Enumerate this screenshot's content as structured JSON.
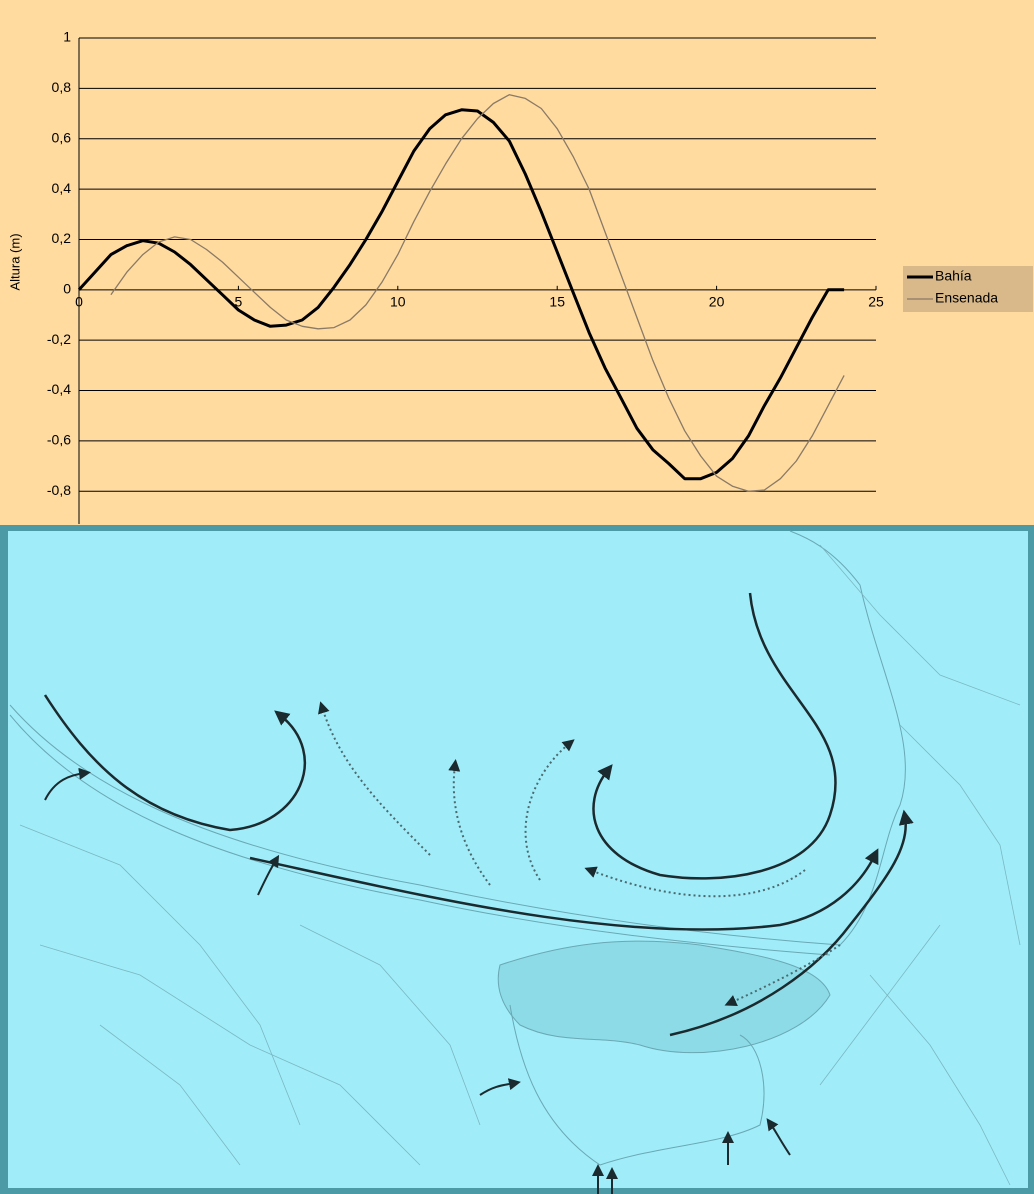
{
  "chart_data": {
    "type": "line",
    "y_label": "Altura (m)",
    "x": [
      0,
      0.5,
      1,
      1.5,
      2,
      2.5,
      3,
      3.5,
      4,
      4.5,
      5,
      5.5,
      6,
      6.5,
      7,
      7.5,
      8,
      8.5,
      9,
      9.5,
      10,
      10.5,
      11,
      11.5,
      12,
      12.5,
      13,
      13.5,
      14,
      14.5,
      15,
      15.5,
      16,
      16.5,
      17,
      17.5,
      18,
      18.5,
      19,
      19.5,
      20,
      20.5,
      21,
      21.5,
      22,
      22.5,
      23,
      23.5,
      24
    ],
    "series": [
      {
        "name": "Bahía",
        "color": "#000000",
        "width": 3,
        "values": [
          0,
          0.07,
          0.14,
          0.175,
          0.195,
          0.185,
          0.15,
          0.1,
          0.04,
          -0.02,
          -0.08,
          -0.12,
          -0.145,
          -0.14,
          -0.12,
          -0.07,
          0.01,
          0.1,
          0.2,
          0.31,
          0.43,
          0.55,
          0.64,
          0.695,
          0.715,
          0.71,
          0.665,
          0.59,
          0.46,
          0.31,
          0.15,
          -0.01,
          -0.17,
          -0.31,
          -0.43,
          -0.55,
          -0.635,
          -0.69,
          -0.75,
          -0.75,
          -0.725,
          -0.67,
          -0.58,
          -0.46,
          -0.35,
          -0.23,
          -0.11,
          0,
          0
        ]
      },
      {
        "name": "Ensenada",
        "color": "#8a7a66",
        "width": 1.3,
        "values": [
          null,
          null,
          -0.02,
          0.07,
          0.14,
          0.19,
          0.21,
          0.2,
          0.16,
          0.11,
          0.05,
          -0.01,
          -0.07,
          -0.12,
          -0.145,
          -0.155,
          -0.15,
          -0.12,
          -0.06,
          0.03,
          0.14,
          0.27,
          0.39,
          0.5,
          0.6,
          0.68,
          0.74,
          0.775,
          0.76,
          0.72,
          0.64,
          0.53,
          0.4,
          0.23,
          0.06,
          -0.11,
          -0.28,
          -0.43,
          -0.56,
          -0.66,
          -0.74,
          -0.78,
          -0.8,
          -0.795,
          -0.75,
          -0.68,
          -0.58,
          -0.46,
          -0.34
        ]
      }
    ],
    "xlim": [
      0,
      25
    ],
    "xticks": [
      0,
      5,
      10,
      15,
      20,
      25
    ],
    "ylim": [
      -0.93,
      1
    ],
    "yticks": [
      1,
      {
        "value": 0.8,
        "label": "0,8"
      },
      {
        "value": 0.6,
        "label": "0,6"
      },
      {
        "value": 0.4,
        "label": "0,4"
      },
      {
        "value": 0.2,
        "label": "0,2"
      },
      0,
      {
        "value": -0.2,
        "label": "-0,2"
      },
      {
        "value": -0.4,
        "label": "-0,4"
      },
      {
        "value": -0.6,
        "label": "-0,6"
      },
      {
        "value": -0.8,
        "label": "-0,8"
      }
    ],
    "grid": true,
    "legend": "right"
  }
}
